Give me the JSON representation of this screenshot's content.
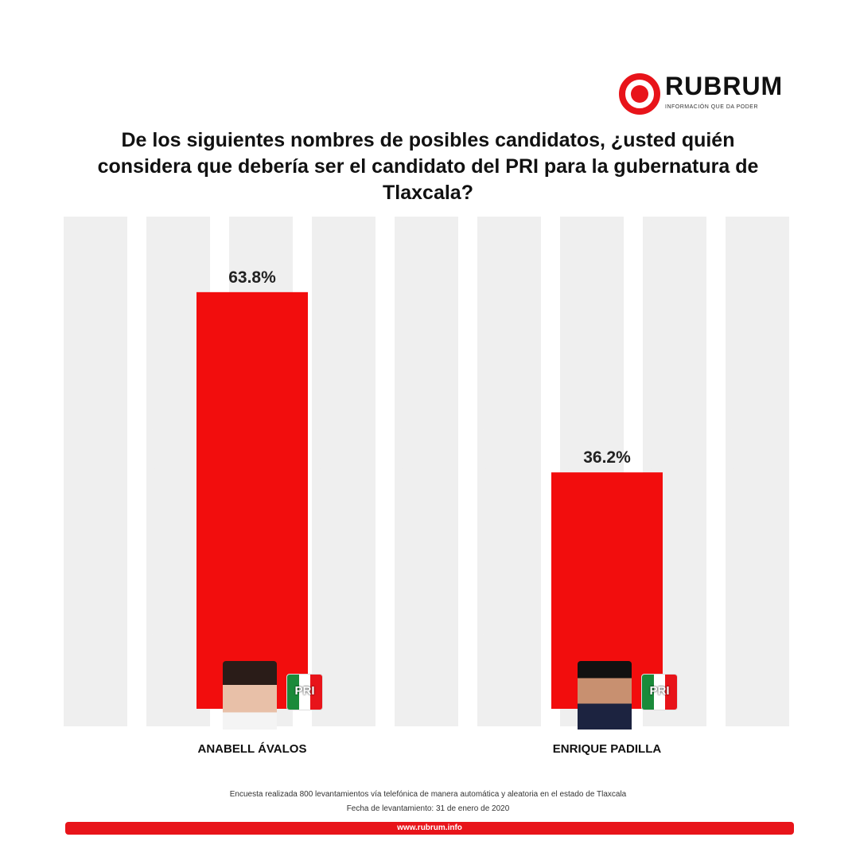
{
  "logo": {
    "word": "RUBRUM",
    "tagline": "INFORMACIÓN QUE DA PODER"
  },
  "chart_data": {
    "type": "bar",
    "title": "De los siguientes nombres de posibles candidatos, ¿usted quién considera que debería ser el candidato del PRI para la gubernatura de Tlaxcala?",
    "categories": [
      "ANABELL ÁVALOS",
      "ENRIQUE PADILLA"
    ],
    "values": [
      63.8,
      36.2
    ],
    "data_labels": [
      "63.8%",
      "36.2%"
    ],
    "bar_color": "#f20d0d",
    "grid": false,
    "legend": "none"
  },
  "party_badge": "PRI",
  "watermark": "RUBRUM",
  "notes": {
    "method": "Encuesta realizada 800 levantamientos vía telefónica de manera automática y aleatoria en el estado de Tlaxcala",
    "date": "Fecha de levantamiento: 31 de enero de 2020"
  },
  "footer": {
    "url": "www.rubrum.info"
  }
}
